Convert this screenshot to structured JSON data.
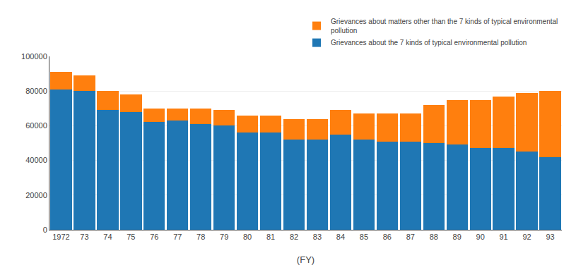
{
  "chart_data": {
    "type": "bar",
    "stacked": true,
    "categories": [
      "1972",
      "73",
      "74",
      "75",
      "76",
      "77",
      "78",
      "79",
      "80",
      "81",
      "82",
      "83",
      "84",
      "85",
      "86",
      "87",
      "88",
      "89",
      "90",
      "91",
      "92",
      "93"
    ],
    "series": [
      {
        "name": "Grievances about the 7 kinds of typical environmental pollution",
        "values": [
          81000,
          80000,
          69000,
          68000,
          62000,
          63000,
          61000,
          60000,
          56000,
          56000,
          52000,
          52000,
          55000,
          52000,
          51000,
          51000,
          50000,
          49000,
          47000,
          47000,
          45000,
          42000
        ]
      },
      {
        "name": "Grievances about matters other than the 7 kinds of typical environmental\npollution",
        "values": [
          10000,
          9000,
          11000,
          10000,
          8000,
          7000,
          9000,
          9000,
          10000,
          10000,
          12000,
          12000,
          14000,
          15000,
          16000,
          16000,
          22000,
          26000,
          28000,
          30000,
          34000,
          38000
        ]
      }
    ],
    "xlabel": "(FY)",
    "ylim": [
      0,
      100000
    ],
    "yticks": [
      0,
      20000,
      40000,
      60000,
      80000,
      100000
    ],
    "grid": true,
    "legend": "upper right"
  }
}
